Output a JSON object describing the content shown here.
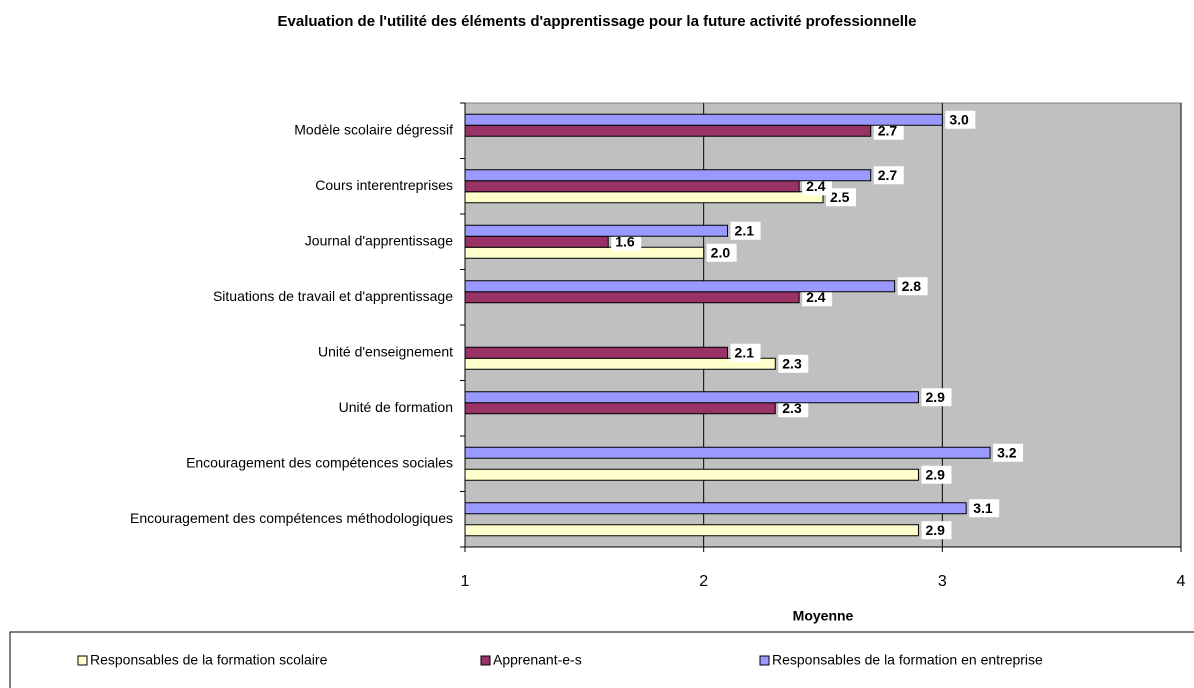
{
  "chart_data": {
    "type": "bar",
    "orientation": "horizontal",
    "title": "Evaluation de l'utilité des éléments d'apprentissage pour la future activité professionnelle",
    "xlabel": "Moyenne",
    "categories": [
      "Modèle scolaire dégressif",
      "Cours interentreprises",
      "Journal d'apprentissage",
      "Situations de travail et d'apprentissage",
      "Unité d'enseignement",
      "Unité de formation",
      "Encouragement des compétences sociales",
      "Encouragement des compétences méthodologiques"
    ],
    "series": [
      {
        "name": "Responsables de la formation scolaire",
        "color": "#ffffcc",
        "values": [
          null,
          2.5,
          2.0,
          null,
          2.3,
          null,
          2.9,
          2.9
        ],
        "value_labels": [
          null,
          "2.5",
          "2.0",
          null,
          "2.3",
          null,
          "2.9",
          "2.9"
        ]
      },
      {
        "name": "Apprenant-e-s",
        "color": "#993366",
        "values": [
          2.7,
          2.4,
          1.6,
          2.4,
          2.1,
          2.3,
          null,
          null
        ],
        "value_labels": [
          "2.7",
          "2.4",
          "1.6",
          "2.4",
          "2.1",
          "2.3",
          null,
          null
        ]
      },
      {
        "name": "Responsables de la formation en entreprise",
        "color": "#9999ff",
        "values": [
          3.0,
          2.7,
          2.1,
          2.8,
          null,
          2.9,
          3.2,
          3.1
        ],
        "value_labels": [
          "3.0",
          "2.7",
          "2.1",
          "2.8",
          null,
          "2.9",
          "3.2",
          "3.1"
        ]
      }
    ],
    "xlim": [
      1,
      4
    ],
    "xticks": [
      1,
      2,
      3,
      4
    ],
    "grid": true,
    "legend": "bottom"
  }
}
